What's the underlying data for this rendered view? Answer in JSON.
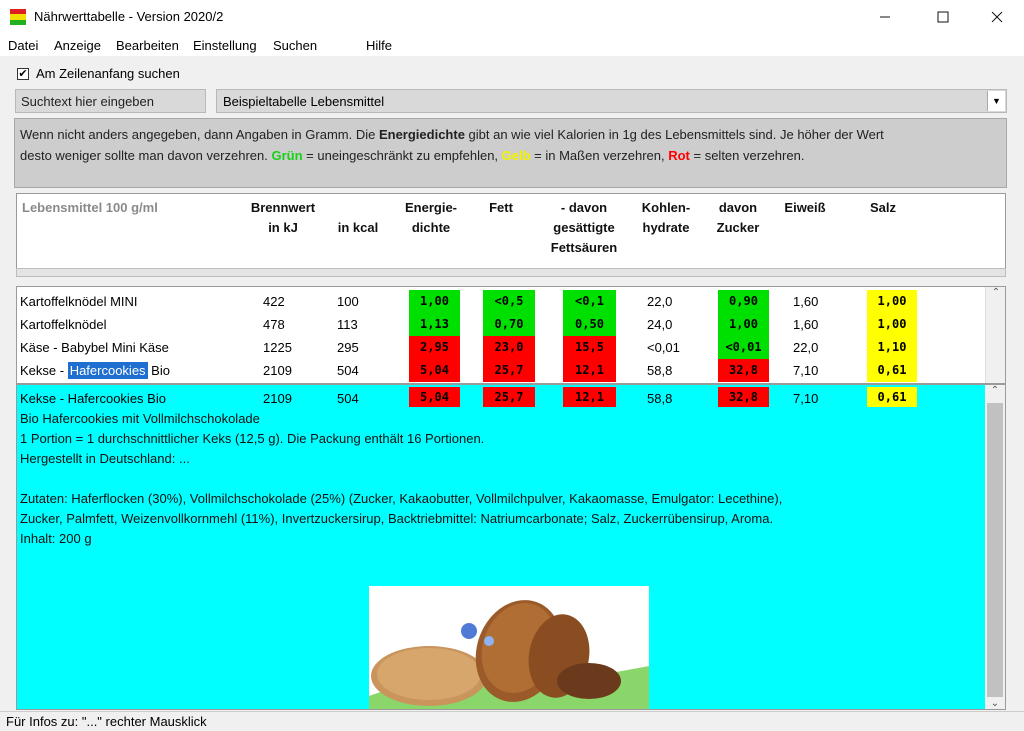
{
  "window": {
    "title": "Nährwerttabelle - Version 2020/2"
  },
  "menu": [
    "Datei",
    "Anzeige",
    "Bearbeiten",
    "Einstellung",
    "Suchen",
    "Hilfe"
  ],
  "options": {
    "search_start_label": "Am Zeilenanfang suchen",
    "search_start_checked": true
  },
  "search": {
    "placeholder": "Suchtext hier eingeben",
    "table_selected": "Beispieltabelle Lebensmittel"
  },
  "info": {
    "line1_start": "Wenn nicht anders angegeben, dann Angaben in Gramm. Die ",
    "line1_bold": "Energiedichte",
    "line1_end": " gibt an wie viel Kalorien in 1g des Lebensmittels sind. Je höher der Wert",
    "line2_start": "desto weniger sollte man davon verzehren. ",
    "green": "Grün",
    "green_text": " = uneingeschränkt zu empfehlen, ",
    "yellow": "Gelb",
    "yellow_text": " = in Maßen verzehren, ",
    "red": "Rot",
    "red_text": " = selten verzehren."
  },
  "columns": {
    "food": "Lebensmittel 100 g/ml",
    "kj_1": "Brennwert",
    "kj_2": "in kJ",
    "kcal": "in kcal",
    "density_1": "Energie-",
    "density_2": "dichte",
    "fat": "Fett",
    "sat_1": "- davon",
    "sat_2": "gesättigte",
    "sat_3": "Fettsäuren",
    "carb_1": "Kohlen-",
    "carb_2": "hydrate",
    "sugar_1": "davon",
    "sugar_2": "Zucker",
    "protein": "Eiweiß",
    "salt": "Salz"
  },
  "rows": [
    {
      "food": "Kartoffelknödel MINI",
      "kj": "422",
      "kcal": "100",
      "density": "1,00",
      "fat": "<0,5",
      "sat": "<0,1",
      "carb": "22,0",
      "sugar": "0,90",
      "protein": "1,60",
      "salt": "1,00"
    },
    {
      "food": "Kartoffelknödel",
      "kj": "478",
      "kcal": "113",
      "density": "1,13",
      "fat": "0,70",
      "sat": "0,50",
      "carb": "24,0",
      "sugar": "1,00",
      "protein": "1,60",
      "salt": "1,00"
    },
    {
      "food": "Käse - Babybel Mini Käse",
      "kj": "1225",
      "kcal": "295",
      "density": "2,95",
      "fat": "23,0",
      "sat": "15,5",
      "carb": "<0,01",
      "sugar": "<0,01",
      "protein": "22,0",
      "salt": "1,10"
    },
    {
      "food_pre": "Kekse - ",
      "food_sel": "Hafercookies",
      "food_post": " Bio",
      "kj": "2109",
      "kcal": "504",
      "density": "5,04",
      "fat": "25,7",
      "sat": "12,1",
      "carb": "58,8",
      "sugar": "32,8",
      "protein": "7,10",
      "salt": "0,61"
    }
  ],
  "detail": {
    "row": {
      "food": "Kekse - Hafercookies Bio",
      "kj": "2109",
      "kcal": "504",
      "density": "5,04",
      "fat": "25,7",
      "sat": "12,1",
      "carb": "58,8",
      "sugar": "32,8",
      "protein": "7,10",
      "salt": "0,61"
    },
    "lines": [
      "Bio Hafercookies mit Vollmilchschokolade",
      "1 Portion = 1 durchschnittlicher Keks (12,5 g). Die Packung enthält 16 Portionen.",
      "Hergestellt in Deutschland: ...",
      "",
      "Zutaten: Haferflocken (30%), Vollmilchschokolade (25%) (Zucker, Kakaobutter, Vollmilchpulver, Kakaomasse, Emulgator: Lecethine),",
      "Zucker, Palmfett, Weizenvollkornmehl (11%), Invertzuckersirup, Backtriebmittel: Natriumcarbonate; Salz, Zuckerrübensirup, Aroma.",
      "Inhalt: 200 g"
    ]
  },
  "status": "Für Infos zu: \"...\" rechter Mausklick",
  "colors": {
    "green": "#00e000",
    "red": "#ff0000",
    "yellow": "#ffff00",
    "detail_bg": "#00ffff",
    "selection": "#1f6fd0"
  }
}
